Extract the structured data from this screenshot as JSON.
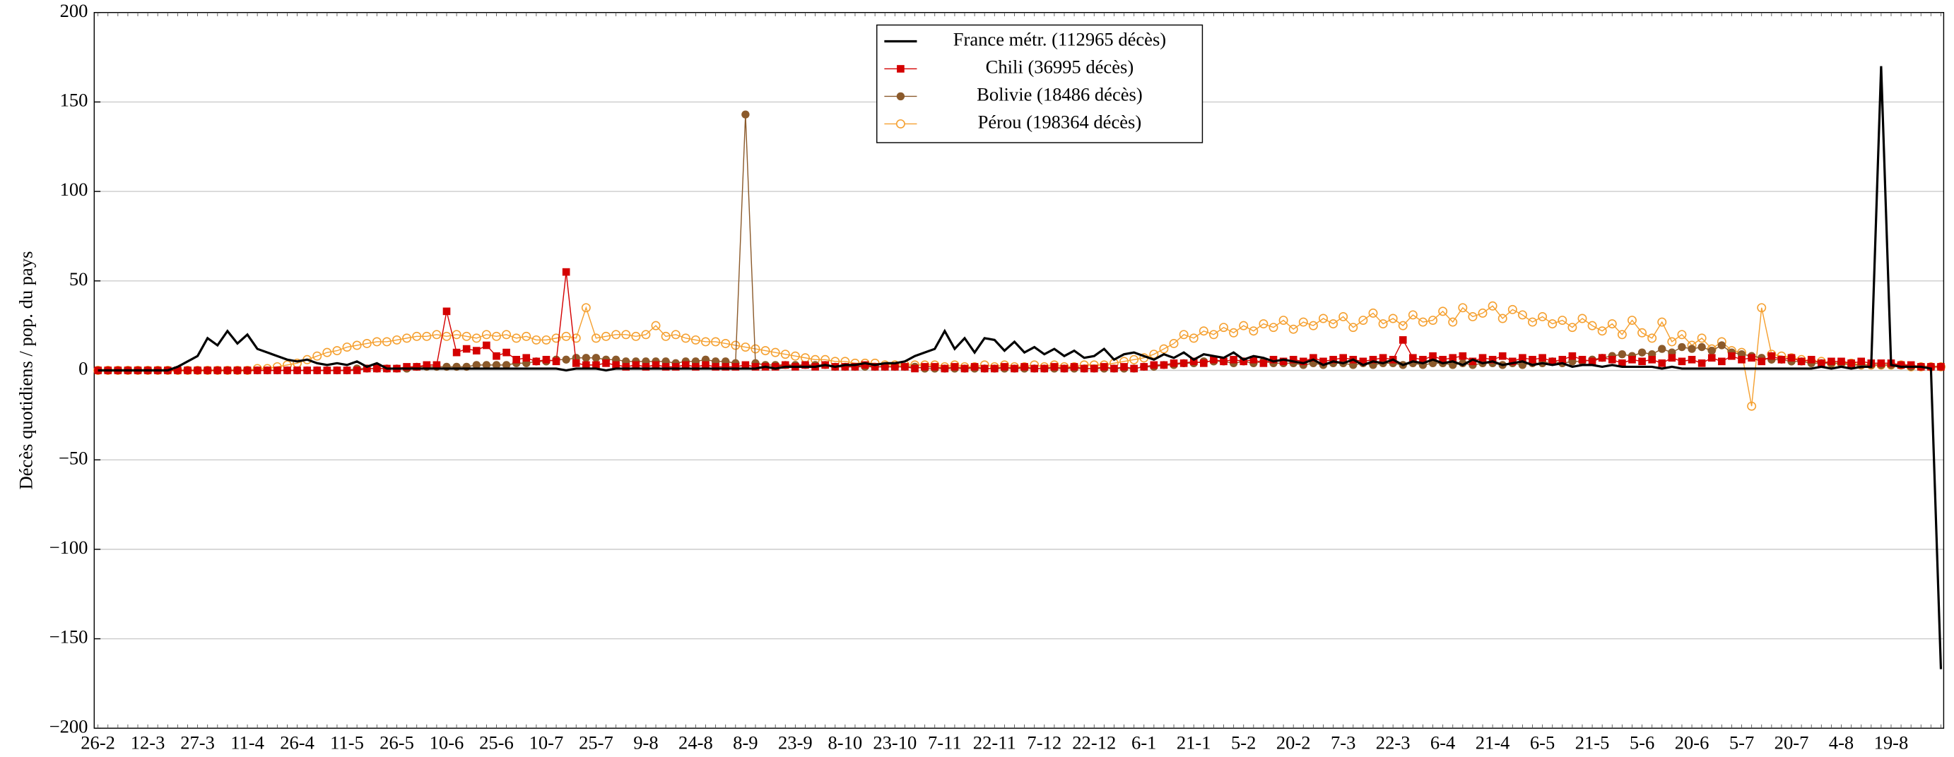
{
  "chart_data": {
    "type": "line",
    "ylabel": "Décès quotidiens / pop. du pays",
    "categories": [
      "26-2",
      null,
      null,
      null,
      null,
      "12-3",
      null,
      null,
      null,
      null,
      "27-3",
      null,
      null,
      null,
      null,
      "11-4",
      null,
      null,
      null,
      null,
      "26-4",
      null,
      null,
      null,
      null,
      "11-5",
      null,
      null,
      null,
      null,
      "26-5",
      null,
      null,
      null,
      null,
      "10-6",
      null,
      null,
      null,
      null,
      "25-6",
      null,
      null,
      null,
      null,
      "10-7",
      null,
      null,
      null,
      null,
      "25-7",
      null,
      null,
      null,
      null,
      "9-8",
      null,
      null,
      null,
      null,
      "24-8",
      null,
      null,
      null,
      null,
      "8-9",
      null,
      null,
      null,
      null,
      "23-9",
      null,
      null,
      null,
      null,
      "8-10",
      null,
      null,
      null,
      null,
      "23-10",
      null,
      null,
      null,
      null,
      "7-11",
      null,
      null,
      null,
      null,
      "22-11",
      null,
      null,
      null,
      null,
      "7-12",
      null,
      null,
      null,
      null,
      "22-12",
      null,
      null,
      null,
      null,
      "6-1",
      null,
      null,
      null,
      null,
      "21-1",
      null,
      null,
      null,
      null,
      "5-2",
      null,
      null,
      null,
      null,
      "20-2",
      null,
      null,
      null,
      null,
      "7-3",
      null,
      null,
      null,
      null,
      "22-3",
      null,
      null,
      null,
      null,
      "6-4",
      null,
      null,
      null,
      null,
      "21-4",
      null,
      null,
      null,
      null,
      "6-5",
      null,
      null,
      null,
      null,
      "21-5",
      null,
      null,
      null,
      null,
      "5-6",
      null,
      null,
      null,
      null,
      "20-6",
      null,
      null,
      null,
      null,
      "5-7",
      null,
      null,
      null,
      null,
      "20-7",
      null,
      null,
      null,
      null,
      "4-8",
      null,
      null,
      null,
      null,
      "19-8",
      null,
      null,
      null,
      null,
      null
    ],
    "series": [
      {
        "name": "France métr. (112965 décès)",
        "color": "#000000",
        "marker": "none",
        "values": [
          0,
          0,
          0,
          0,
          0,
          0,
          0,
          0,
          2,
          5,
          8,
          18,
          14,
          22,
          15,
          20,
          12,
          10,
          8,
          6,
          5,
          6,
          4,
          3,
          4,
          3,
          5,
          2,
          4,
          1,
          1,
          1,
          1,
          1,
          1,
          1,
          1,
          1,
          1,
          1,
          1,
          1,
          1,
          1,
          1,
          1,
          1,
          0,
          1,
          1,
          1,
          0,
          1,
          1,
          1,
          1,
          1,
          1,
          1,
          1,
          1,
          1,
          1,
          1,
          1,
          1,
          1,
          2,
          1,
          2,
          2,
          2,
          2,
          3,
          2,
          3,
          3,
          4,
          3,
          4,
          4,
          5,
          8,
          10,
          12,
          22,
          12,
          18,
          10,
          18,
          17,
          11,
          16,
          10,
          13,
          9,
          12,
          8,
          11,
          7,
          8,
          12,
          6,
          9,
          10,
          8,
          6,
          9,
          7,
          10,
          6,
          9,
          8,
          7,
          10,
          6,
          8,
          7,
          5,
          6,
          5,
          4,
          6,
          3,
          5,
          4,
          6,
          3,
          5,
          4,
          6,
          3,
          5,
          4,
          6,
          4,
          5,
          3,
          6,
          4,
          5,
          3,
          4,
          5,
          3,
          4,
          3,
          4,
          2,
          3,
          3,
          2,
          3,
          2,
          2,
          2,
          2,
          1,
          2,
          1,
          1,
          1,
          1,
          1,
          1,
          1,
          1,
          1,
          1,
          1,
          1,
          1,
          1,
          2,
          1,
          2,
          1,
          2,
          2,
          170,
          3,
          2,
          2,
          2,
          1,
          -167
        ]
      },
      {
        "name": "Chili (36995 décès)",
        "color": "#d40000",
        "marker": "square",
        "values": [
          0,
          0,
          0,
          0,
          0,
          0,
          0,
          0,
          0,
          0,
          0,
          0,
          0,
          0,
          0,
          0,
          0,
          0,
          0,
          0,
          0,
          0,
          0,
          0,
          0,
          0,
          0,
          1,
          1,
          1,
          1,
          2,
          2,
          3,
          3,
          33,
          10,
          12,
          11,
          14,
          8,
          10,
          6,
          7,
          5,
          6,
          5,
          55,
          4,
          3,
          3,
          4,
          3,
          2,
          3,
          2,
          3,
          2,
          2,
          3,
          2,
          3,
          2,
          2,
          2,
          3,
          2,
          2,
          2,
          3,
          2,
          3,
          2,
          3,
          2,
          2,
          2,
          3,
          2,
          2,
          2,
          2,
          1,
          2,
          2,
          1,
          2,
          1,
          2,
          1,
          1,
          2,
          1,
          2,
          1,
          1,
          2,
          1,
          2,
          1,
          1,
          2,
          1,
          2,
          1,
          2,
          3,
          3,
          4,
          4,
          5,
          4,
          6,
          5,
          6,
          5,
          6,
          4,
          6,
          5,
          6,
          5,
          7,
          5,
          6,
          7,
          6,
          5,
          6,
          7,
          6,
          17,
          7,
          6,
          8,
          6,
          7,
          8,
          5,
          7,
          6,
          8,
          5,
          7,
          6,
          7,
          5,
          6,
          8,
          6,
          5,
          7,
          6,
          4,
          6,
          5,
          6,
          4,
          7,
          5,
          6,
          4,
          7,
          5,
          8,
          6,
          7,
          5,
          8,
          6,
          7,
          5,
          6,
          4,
          5,
          5,
          4,
          5,
          4,
          4,
          4,
          3,
          3,
          2,
          2,
          2
        ]
      },
      {
        "name": "Bolivie (18486 décès)",
        "color": "#8b5a2b",
        "marker": "circle",
        "values": [
          0,
          0,
          0,
          0,
          0,
          0,
          0,
          0,
          0,
          0,
          0,
          0,
          0,
          0,
          0,
          0,
          0,
          0,
          0,
          0,
          0,
          0,
          0,
          0,
          0,
          0,
          1,
          1,
          1,
          1,
          1,
          1,
          2,
          2,
          2,
          2,
          2,
          2,
          3,
          3,
          3,
          3,
          4,
          4,
          5,
          5,
          6,
          6,
          7,
          7,
          7,
          6,
          6,
          5,
          5,
          5,
          5,
          5,
          4,
          5,
          5,
          6,
          5,
          5,
          4,
          143,
          4,
          3,
          3,
          3,
          3,
          3,
          3,
          3,
          2,
          2,
          2,
          2,
          2,
          2,
          2,
          2,
          2,
          1,
          1,
          1,
          1,
          1,
          1,
          1,
          1,
          1,
          1,
          1,
          1,
          1,
          1,
          1,
          1,
          1,
          1,
          1,
          1,
          1,
          1,
          2,
          2,
          3,
          3,
          4,
          4,
          5,
          5,
          5,
          4,
          5,
          4,
          5,
          4,
          4,
          4,
          3,
          4,
          3,
          4,
          4,
          3,
          4,
          3,
          4,
          4,
          3,
          4,
          3,
          4,
          4,
          3,
          4,
          3,
          4,
          4,
          3,
          4,
          3,
          4,
          4,
          5,
          4,
          5,
          5,
          6,
          7,
          8,
          9,
          8,
          10,
          9,
          12,
          10,
          13,
          12,
          13,
          11,
          14,
          10,
          9,
          8,
          7,
          6,
          6,
          5,
          5,
          4,
          4,
          4,
          4,
          3,
          3,
          3,
          3,
          3,
          3,
          2,
          2,
          2,
          2
        ]
      },
      {
        "name": "Pérou (198364 décès)",
        "color": "#f5a030",
        "marker": "open-circle",
        "values": [
          0,
          0,
          0,
          0,
          0,
          0,
          0,
          0,
          0,
          0,
          0,
          0,
          0,
          0,
          0,
          0,
          1,
          1,
          2,
          3,
          4,
          6,
          8,
          10,
          11,
          13,
          14,
          15,
          16,
          16,
          17,
          18,
          19,
          19,
          20,
          19,
          20,
          19,
          18,
          20,
          19,
          20,
          18,
          19,
          17,
          17,
          18,
          19,
          18,
          35,
          18,
          19,
          20,
          20,
          19,
          20,
          25,
          19,
          20,
          18,
          17,
          16,
          16,
          15,
          14,
          13,
          12,
          11,
          10,
          9,
          8,
          7,
          6,
          6,
          5,
          5,
          4,
          4,
          4,
          3,
          3,
          3,
          3,
          3,
          3,
          2,
          3,
          2,
          2,
          3,
          2,
          3,
          2,
          2,
          3,
          2,
          3,
          2,
          2,
          3,
          3,
          3,
          4,
          5,
          6,
          7,
          9,
          12,
          15,
          20,
          18,
          22,
          20,
          24,
          21,
          25,
          22,
          26,
          24,
          28,
          23,
          27,
          25,
          29,
          26,
          30,
          24,
          28,
          32,
          26,
          29,
          25,
          31,
          27,
          28,
          33,
          27,
          35,
          30,
          32,
          36,
          29,
          34,
          31,
          27,
          30,
          26,
          28,
          24,
          29,
          25,
          22,
          26,
          20,
          28,
          21,
          18,
          27,
          16,
          20,
          14,
          18,
          12,
          16,
          11,
          10,
          -20,
          35,
          9,
          8,
          7,
          6,
          5,
          5,
          4,
          4,
          4,
          3,
          3,
          3,
          3,
          3,
          2,
          2,
          2,
          2
        ]
      }
    ],
    "ylim": [
      -200,
      200
    ],
    "yticks": [
      {
        "value": -200,
        "label": "−200"
      },
      {
        "value": -150,
        "label": "−150"
      },
      {
        "value": -100,
        "label": "−100"
      },
      {
        "value": -50,
        "label": "−50"
      },
      0,
      50,
      100,
      150,
      200
    ],
    "grid": true,
    "legend_position": "top"
  }
}
